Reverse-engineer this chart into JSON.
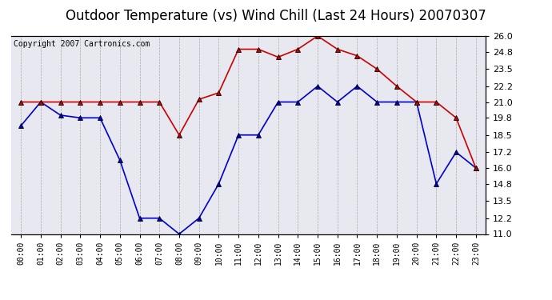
{
  "title": "Outdoor Temperature (vs) Wind Chill (Last 24 Hours) 20070307",
  "copyright": "Copyright 2007 Cartronics.com",
  "hours": [
    "00:00",
    "01:00",
    "02:00",
    "03:00",
    "04:00",
    "05:00",
    "06:00",
    "07:00",
    "08:00",
    "09:00",
    "10:00",
    "11:00",
    "12:00",
    "13:00",
    "14:00",
    "15:00",
    "16:00",
    "17:00",
    "18:00",
    "19:00",
    "20:00",
    "21:00",
    "22:00",
    "23:00"
  ],
  "outdoor_temp": [
    21.0,
    21.0,
    21.0,
    21.0,
    21.0,
    21.0,
    21.0,
    21.0,
    18.5,
    21.2,
    21.7,
    25.0,
    25.0,
    24.4,
    25.0,
    26.0,
    25.0,
    24.5,
    23.5,
    22.2,
    21.0,
    21.0,
    19.8,
    16.0
  ],
  "wind_chill": [
    19.2,
    21.0,
    20.0,
    19.8,
    19.8,
    16.6,
    12.2,
    12.2,
    11.0,
    12.2,
    14.8,
    18.5,
    18.5,
    21.0,
    21.0,
    22.2,
    21.0,
    22.2,
    21.0,
    21.0,
    21.0,
    14.8,
    17.2,
    16.0
  ],
  "temp_color": "#cc0000",
  "chill_color": "#0000cc",
  "marker": "^",
  "marker_size": 4,
  "ylim": [
    11.0,
    26.0
  ],
  "yticks": [
    11.0,
    12.2,
    13.5,
    14.8,
    16.0,
    17.2,
    18.5,
    19.8,
    21.0,
    22.2,
    23.5,
    24.8,
    26.0
  ],
  "bg_color": "#ffffff",
  "plot_bg_color": "#e8e8f0",
  "grid_color": "#aaaaaa",
  "title_fontsize": 12,
  "copyright_fontsize": 7,
  "tick_fontsize": 8,
  "xlabel_fontsize": 7
}
